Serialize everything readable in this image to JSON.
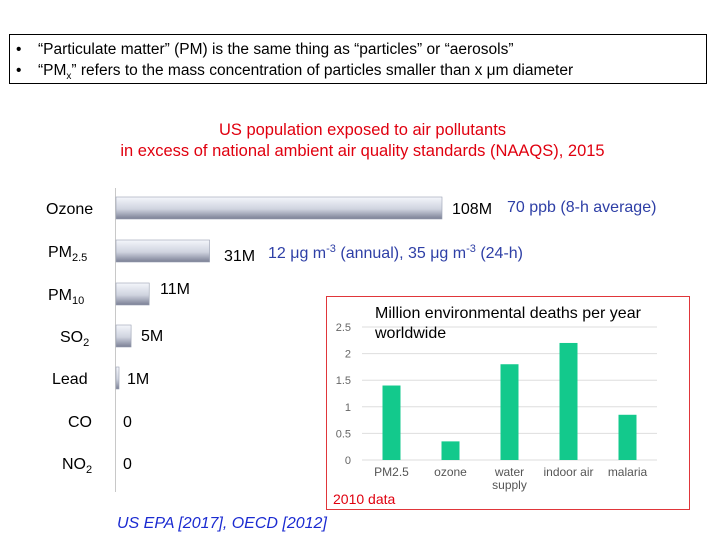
{
  "intro": {
    "bullets": [
      "“Particulate matter” (PM) is the same thing as “particles” or “aerosols”",
      "“PMx” refers to the mass concentration of particles smaller than x μm diameter"
    ]
  },
  "chart_title": {
    "line1": "US population exposed to air pollutants",
    "line2": "in excess of national ambient air quality standards (NAAQS), 2015"
  },
  "source": "US EPA [2017], OECD [2012]",
  "colors": {
    "title_red": "#e0000f",
    "note_blue": "#2e3fa6",
    "inset_bar": "#13c98c",
    "bar_light": "#e9ecf4",
    "bar_dark": "#7a7f94"
  },
  "chart_data": [
    {
      "type": "bar",
      "orientation": "horizontal",
      "title": "US population exposed to air pollutants in excess of national ambient air quality standards (NAAQS), 2015",
      "categories": [
        "Ozone",
        "PM2.5",
        "PM10",
        "SO2",
        "Lead",
        "CO",
        "NO2"
      ],
      "category_display": [
        {
          "base": "Ozone",
          "sub": ""
        },
        {
          "base": "PM",
          "sub": "2.5"
        },
        {
          "base": "PM",
          "sub": "10"
        },
        {
          "base": "SO",
          "sub": "2"
        },
        {
          "base": "Lead",
          "sub": ""
        },
        {
          "base": "CO",
          "sub": ""
        },
        {
          "base": "NO",
          "sub": "2"
        }
      ],
      "values": [
        108,
        31,
        11,
        5,
        1,
        0,
        0
      ],
      "value_labels": [
        "108M",
        "31M",
        "11M",
        "5M",
        "1M",
        "0",
        "0"
      ],
      "units": "million people",
      "notes": [
        {
          "category": "Ozone",
          "text": "70 ppb (8-h average)"
        },
        {
          "category": "PM2.5",
          "parts": [
            {
              "t": "12 μg m"
            },
            {
              "t": "-3",
              "sup": true
            },
            {
              "t": " (annual), 35 μg m"
            },
            {
              "t": "-3",
              "sup": true
            },
            {
              "t": " (24-h)"
            }
          ]
        }
      ],
      "xlim": [
        0,
        108
      ]
    },
    {
      "type": "bar",
      "title": "Million environmental deaths per year worldwide",
      "categories": [
        "PM2.5",
        "ozone",
        "water supply",
        "indoor air",
        "malaria"
      ],
      "category_lines": [
        [
          "PM2.5"
        ],
        [
          "ozone"
        ],
        [
          "water",
          "supply"
        ],
        [
          "indoor air"
        ],
        [
          "malaria"
        ]
      ],
      "values": [
        1.4,
        0.35,
        1.8,
        2.2,
        0.85
      ],
      "ylim": [
        0,
        2.5
      ],
      "yticks": [
        0,
        0.5,
        1,
        1.5,
        2,
        2.5
      ],
      "ytick_labels": [
        "0",
        "0.5",
        "1",
        "1.5",
        "2",
        "2.5"
      ],
      "footnote": "2010 data"
    }
  ]
}
